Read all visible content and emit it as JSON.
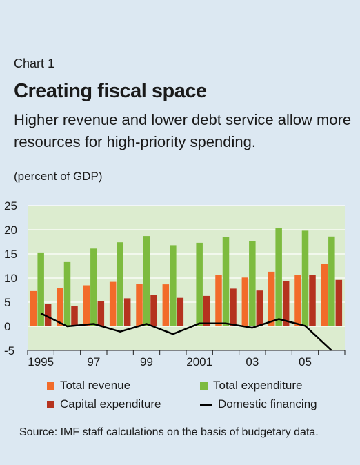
{
  "header": {
    "chart_label": "Chart 1",
    "title": "Creating fiscal space",
    "subtitle": "Higher revenue and lower debt service allow more resources for high-priority spending.",
    "unit": "(percent of GDP)"
  },
  "source": "Source: IMF staff calculations on the basis of budgetary data.",
  "colors": {
    "plot_background": "#dceccf",
    "total_revenue": "#f26b2a",
    "total_expenditure": "#7dbb3f",
    "capital_expenditure": "#b5331f",
    "domestic_financing": "#000000"
  },
  "chart_data": {
    "type": "bar",
    "years": [
      1995,
      1996,
      1997,
      1998,
      1999,
      2000,
      2001,
      2002,
      2003,
      2004,
      2005,
      2006
    ],
    "x_tick_labels": [
      "1995",
      "97",
      "99",
      "2001",
      "03",
      "05"
    ],
    "x_tick_years": [
      1995,
      1997,
      1999,
      2001,
      2003,
      2005
    ],
    "y_ticks": [
      25,
      20,
      15,
      10,
      5,
      0,
      -5
    ],
    "ylim": [
      -5,
      25
    ],
    "grid": true,
    "series": [
      {
        "name": "Total revenue",
        "type": "bar",
        "values": [
          7.3,
          8.0,
          8.5,
          9.2,
          8.8,
          8.7,
          null,
          10.7,
          10.1,
          11.3,
          10.6,
          13.0
        ]
      },
      {
        "name": "Total expenditure",
        "type": "bar",
        "values": [
          15.3,
          13.3,
          16.1,
          17.4,
          18.7,
          16.8,
          17.3,
          18.5,
          17.6,
          20.4,
          19.8,
          18.6
        ]
      },
      {
        "name": "Capital expenditure",
        "type": "bar",
        "values": [
          4.6,
          4.2,
          5.2,
          5.8,
          6.5,
          5.9,
          6.3,
          7.8,
          7.4,
          9.3,
          10.7,
          9.6
        ]
      },
      {
        "name": "Domestic financing",
        "type": "line",
        "values": [
          2.7,
          0.0,
          0.5,
          -1.1,
          0.5,
          -1.6,
          0.6,
          0.6,
          -0.3,
          1.5,
          0.1,
          -5.0
        ]
      }
    ]
  }
}
